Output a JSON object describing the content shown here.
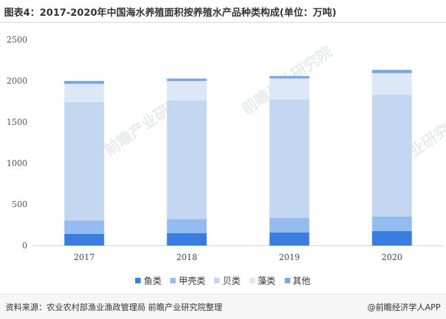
{
  "title": "图表4：2017-2020年中国海水养殖面积按养殖水产品种类构成(单位：万吨)",
  "footer": {
    "source": "资料来源：农业农村部渔业渔政管理局 前瞻产业研究院整理",
    "brand": "@前瞻经济学人APP"
  },
  "watermark": "前瞻产业研究院",
  "colors": {
    "fish": "#3a7de0",
    "crustacean": "#94bcf0",
    "shellfish": "#c4d7f1",
    "algae": "#dde8f6",
    "other": "#7aa7e6"
  },
  "chart_data": {
    "type": "bar",
    "stacked": true,
    "categories": [
      "2017",
      "2018",
      "2019",
      "2020"
    ],
    "series": [
      {
        "name": "鱼类",
        "color_key": "fish",
        "values": [
          142,
          150,
          160,
          175
        ]
      },
      {
        "name": "甲壳类",
        "color_key": "crustacean",
        "values": [
          163,
          171,
          177,
          178
        ]
      },
      {
        "name": "贝类",
        "color_key": "shellfish",
        "values": [
          1437,
          1443,
          1439,
          1480
        ]
      },
      {
        "name": "藻类",
        "color_key": "algae",
        "values": [
          222,
          235,
          254,
          262
        ]
      },
      {
        "name": "其他",
        "color_key": "other",
        "values": [
          36,
          30,
          30,
          40
        ]
      }
    ],
    "ylim": [
      0,
      2500
    ],
    "yticks": [
      0,
      500,
      1000,
      1500,
      2000,
      2500
    ],
    "grid": false,
    "legend_position": "bottom"
  }
}
